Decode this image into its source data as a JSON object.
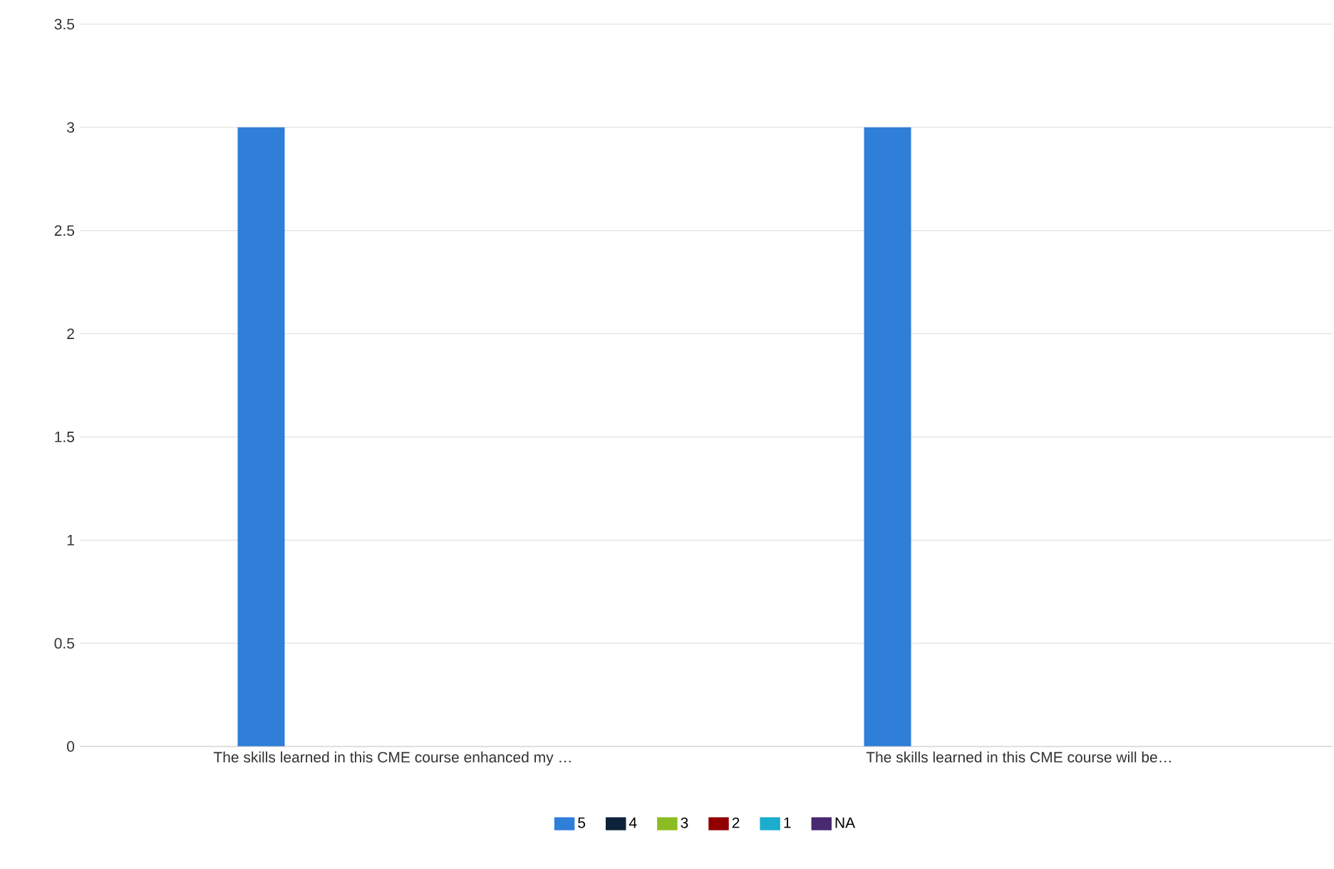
{
  "chart_data": {
    "type": "bar",
    "categories": [
      "The skills learned in this CME course enhanced my …",
      "The skills learned in this CME course will be…"
    ],
    "series": [
      {
        "name": "5",
        "color": "#2f7ed8",
        "values": [
          3,
          3
        ]
      },
      {
        "name": "4",
        "color": "#0d233a",
        "values": [
          0,
          0
        ]
      },
      {
        "name": "3",
        "color": "#8bbc21",
        "values": [
          0,
          0
        ]
      },
      {
        "name": "2",
        "color": "#910000",
        "values": [
          0,
          0
        ]
      },
      {
        "name": "1",
        "color": "#1aadce",
        "values": [
          0,
          0
        ]
      },
      {
        "name": "NA",
        "color": "#492970",
        "values": [
          0,
          0
        ]
      }
    ],
    "ylim": [
      0,
      3.5
    ],
    "yticks": [
      0,
      0.5,
      1,
      1.5,
      2,
      2.5,
      3,
      3.5
    ],
    "grid": "y",
    "legend": "bottom"
  }
}
